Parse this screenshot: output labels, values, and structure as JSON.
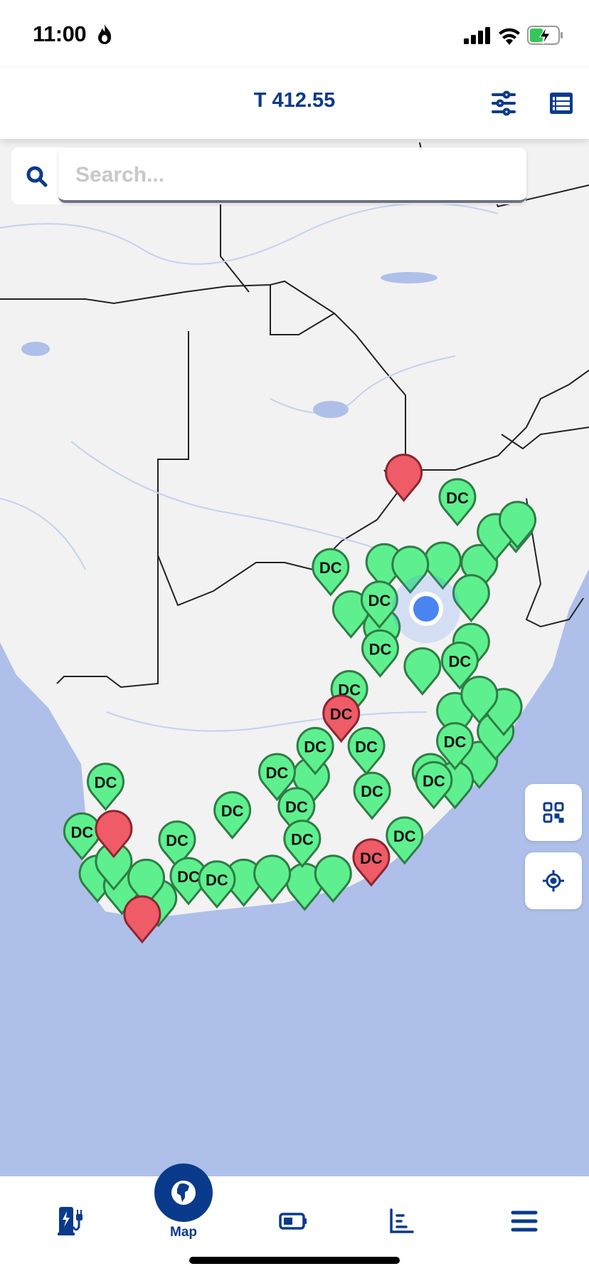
{
  "status_bar": {
    "time": "11:00"
  },
  "header": {
    "title": "T 412.55",
    "filter_icon": "sliders-icon",
    "list_icon": "list-view-icon"
  },
  "search": {
    "placeholder": "Search...",
    "value": ""
  },
  "map": {
    "colors": {
      "land": "#f2f2f3",
      "ocean": "#aebfe9",
      "marker_available": "#5ef08f",
      "marker_unavailable": "#ef5b67",
      "marker_border_available": "#2f7d45",
      "marker_border_unavailable": "#8c2631",
      "user_location": "#4a84f0"
    },
    "markers": [
      {
        "label": "DC",
        "status": "available"
      },
      {
        "label": "DC",
        "status": "available"
      },
      {
        "label": "DC",
        "status": "available"
      },
      {
        "label": "DC",
        "status": "available"
      },
      {
        "label": "DC",
        "status": "available"
      },
      {
        "label": "DC",
        "status": "available"
      },
      {
        "label": "DC",
        "status": "available"
      },
      {
        "label": "DC",
        "status": "available"
      },
      {
        "label": "DC",
        "status": "available"
      },
      {
        "label": "DC",
        "status": "available"
      },
      {
        "label": "DC",
        "status": "available"
      },
      {
        "label": "DC",
        "status": "available"
      },
      {
        "label": "DC",
        "status": "available"
      },
      {
        "label": "DC",
        "status": "available"
      },
      {
        "label": "DC",
        "status": "available"
      },
      {
        "label": "DC",
        "status": "available"
      },
      {
        "label": "DC",
        "status": "available"
      },
      {
        "label": "DC",
        "status": "available"
      },
      {
        "label": "DC",
        "status": "available"
      },
      {
        "label": "DC",
        "status": "available"
      },
      {
        "label": "DC",
        "status": "available"
      },
      {
        "label": "",
        "status": "unavailable"
      },
      {
        "label": "DC",
        "status": "unavailable"
      },
      {
        "label": "DC",
        "status": "unavailable"
      },
      {
        "label": "",
        "status": "unavailable"
      },
      {
        "label": "",
        "status": "unavailable"
      }
    ]
  },
  "fabs": {
    "qr_icon": "qr-code-icon",
    "locate_icon": "crosshair-icon"
  },
  "bottom_nav": {
    "items": [
      {
        "icon": "ev-charger-icon",
        "label": ""
      },
      {
        "icon": "globe-africa-icon",
        "label": "Map"
      },
      {
        "icon": "battery-icon",
        "label": ""
      },
      {
        "icon": "bar-chart-icon",
        "label": ""
      },
      {
        "icon": "hamburger-menu-icon",
        "label": ""
      }
    ]
  }
}
